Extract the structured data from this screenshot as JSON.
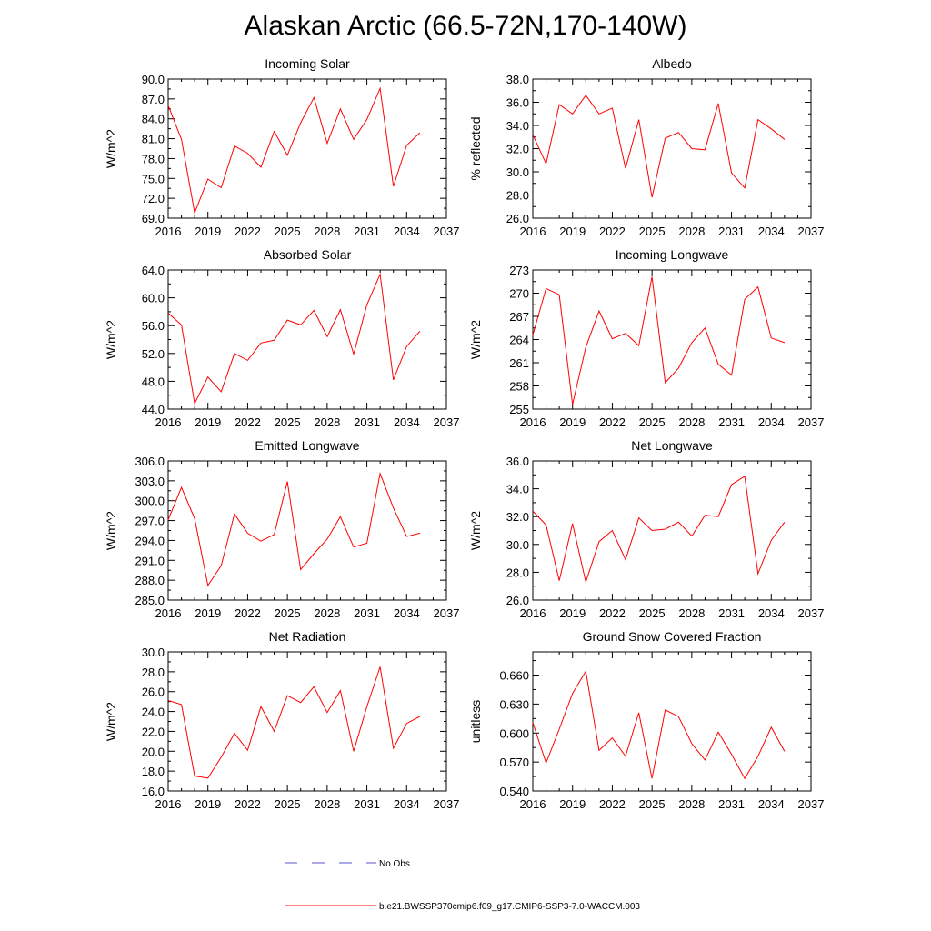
{
  "title": "Alaskan Arctic (66.5-72N,170-140W)",
  "legend": {
    "obs_label": "No Obs",
    "model_label": "b.e21.BWSSP370cmip6.f09_g17.CMIP6-SSP3-7.0-WACCM.003",
    "obs_color": "#5555cc",
    "model_color": "#ff0000"
  },
  "chart_data": [
    {
      "type": "line",
      "title": "Incoming Solar",
      "ylabel": "W/m^2",
      "xlabel": "",
      "xlim": [
        2016,
        2037
      ],
      "xticks": [
        "2016",
        "2019",
        "2022",
        "2025",
        "2028",
        "2031",
        "2034",
        "2037"
      ],
      "ylim": [
        69.0,
        90.0
      ],
      "yticks": [
        "69.0",
        "72.0",
        "75.0",
        "78.0",
        "81.0",
        "84.0",
        "87.0",
        "90.0"
      ],
      "x": [
        2016,
        2017,
        2018,
        2019,
        2020,
        2021,
        2022,
        2023,
        2024,
        2025,
        2026,
        2027,
        2028,
        2029,
        2030,
        2031,
        2032,
        2033,
        2034,
        2035
      ],
      "series": [
        {
          "name": "b.e21.BWSSP370cmip6.f09_g17.CMIP6-SSP3-7.0-WACCM.003",
          "values": [
            86.0,
            80.9,
            69.8,
            74.9,
            73.6,
            79.9,
            78.8,
            76.7,
            82.1,
            78.5,
            83.4,
            87.2,
            80.3,
            85.5,
            80.9,
            83.9,
            88.6,
            73.8,
            80.0,
            81.9
          ]
        }
      ]
    },
    {
      "type": "line",
      "title": "Albedo",
      "ylabel": "% reflected",
      "xlabel": "",
      "xlim": [
        2016,
        2037
      ],
      "xticks": [
        "2016",
        "2019",
        "2022",
        "2025",
        "2028",
        "2031",
        "2034",
        "2037"
      ],
      "ylim": [
        26.0,
        38.0
      ],
      "yticks": [
        "26.0",
        "28.0",
        "30.0",
        "32.0",
        "34.0",
        "36.0",
        "38.0"
      ],
      "x": [
        2016,
        2017,
        2018,
        2019,
        2020,
        2021,
        2022,
        2023,
        2024,
        2025,
        2026,
        2027,
        2028,
        2029,
        2030,
        2031,
        2032,
        2033,
        2034,
        2035
      ],
      "series": [
        {
          "name": "b.e21.BWSSP370cmip6.f09_g17.CMIP6-SSP3-7.0-WACCM.003",
          "values": [
            33.2,
            30.7,
            35.8,
            35.0,
            36.6,
            35.0,
            35.5,
            30.3,
            34.5,
            27.8,
            32.9,
            33.4,
            32.0,
            31.9,
            35.9,
            29.9,
            28.6,
            34.5,
            33.7,
            32.8
          ]
        }
      ]
    },
    {
      "type": "line",
      "title": "Absorbed Solar",
      "ylabel": "W/m^2",
      "xlabel": "",
      "xlim": [
        2016,
        2037
      ],
      "xticks": [
        "2016",
        "2019",
        "2022",
        "2025",
        "2028",
        "2031",
        "2034",
        "2037"
      ],
      "ylim": [
        44.0,
        64.0
      ],
      "yticks": [
        "44.0",
        "48.0",
        "52.0",
        "56.0",
        "60.0",
        "64.0"
      ],
      "x": [
        2016,
        2017,
        2018,
        2019,
        2020,
        2021,
        2022,
        2023,
        2024,
        2025,
        2026,
        2027,
        2028,
        2029,
        2030,
        2031,
        2032,
        2033,
        2034,
        2035
      ],
      "series": [
        {
          "name": "b.e21.BWSSP370cmip6.f09_g17.CMIP6-SSP3-7.0-WACCM.003",
          "values": [
            57.8,
            56.1,
            44.8,
            48.6,
            46.5,
            52.0,
            51.0,
            53.5,
            53.9,
            56.8,
            56.1,
            58.2,
            54.4,
            58.3,
            51.9,
            59.0,
            63.4,
            48.2,
            53.0,
            55.2
          ]
        }
      ]
    },
    {
      "type": "line",
      "title": "Incoming Longwave",
      "ylabel": "W/m^2",
      "xlabel": "",
      "xlim": [
        2016,
        2037
      ],
      "xticks": [
        "2016",
        "2019",
        "2022",
        "2025",
        "2028",
        "2031",
        "2034",
        "2037"
      ],
      "ylim": [
        255,
        273
      ],
      "yticks": [
        "255",
        "258",
        "261",
        "264",
        "267",
        "270",
        "273"
      ],
      "x": [
        2016,
        2017,
        2018,
        2019,
        2020,
        2021,
        2022,
        2023,
        2024,
        2025,
        2026,
        2027,
        2028,
        2029,
        2030,
        2031,
        2032,
        2033,
        2034,
        2035
      ],
      "series": [
        {
          "name": "b.e21.BWSSP370cmip6.f09_g17.CMIP6-SSP3-7.0-WACCM.003",
          "values": [
            264.6,
            270.6,
            269.8,
            255.6,
            263.0,
            267.7,
            264.1,
            264.8,
            263.2,
            272.1,
            258.4,
            260.3,
            263.6,
            265.5,
            260.8,
            259.4,
            269.2,
            270.8,
            264.2,
            263.6
          ]
        }
      ]
    },
    {
      "type": "line",
      "title": "Emitted Longwave",
      "ylabel": "W/m^2",
      "xlabel": "",
      "xlim": [
        2016,
        2037
      ],
      "xticks": [
        "2016",
        "2019",
        "2022",
        "2025",
        "2028",
        "2031",
        "2034",
        "2037"
      ],
      "ylim": [
        285.0,
        306.0
      ],
      "yticks": [
        "285.0",
        "288.0",
        "291.0",
        "294.0",
        "297.0",
        "300.0",
        "303.0",
        "306.0"
      ],
      "x": [
        2016,
        2017,
        2018,
        2019,
        2020,
        2021,
        2022,
        2023,
        2024,
        2025,
        2026,
        2027,
        2028,
        2029,
        2030,
        2031,
        2032,
        2033,
        2034,
        2035
      ],
      "series": [
        {
          "name": "b.e21.BWSSP370cmip6.f09_g17.CMIP6-SSP3-7.0-WACCM.003",
          "values": [
            297.1,
            302.0,
            297.3,
            287.2,
            290.2,
            298.0,
            295.1,
            293.9,
            294.9,
            302.9,
            289.6,
            292.0,
            294.2,
            297.6,
            293.0,
            293.6,
            304.1,
            298.9,
            294.6,
            295.1
          ]
        }
      ]
    },
    {
      "type": "line",
      "title": "Net Longwave",
      "ylabel": "W/m^2",
      "xlabel": "",
      "xlim": [
        2016,
        2037
      ],
      "xticks": [
        "2016",
        "2019",
        "2022",
        "2025",
        "2028",
        "2031",
        "2034",
        "2037"
      ],
      "ylim": [
        26.0,
        36.0
      ],
      "yticks": [
        "26.0",
        "28.0",
        "30.0",
        "32.0",
        "34.0",
        "36.0"
      ],
      "x": [
        2016,
        2017,
        2018,
        2019,
        2020,
        2021,
        2022,
        2023,
        2024,
        2025,
        2026,
        2027,
        2028,
        2029,
        2030,
        2031,
        2032,
        2033,
        2034,
        2035
      ],
      "series": [
        {
          "name": "b.e21.BWSSP370cmip6.f09_g17.CMIP6-SSP3-7.0-WACCM.003",
          "values": [
            32.4,
            31.4,
            27.4,
            31.5,
            27.3,
            30.2,
            31.0,
            28.9,
            31.9,
            31.0,
            31.1,
            31.6,
            30.6,
            32.1,
            32.0,
            34.3,
            34.9,
            27.9,
            30.3,
            31.6
          ]
        }
      ]
    },
    {
      "type": "line",
      "title": "Net Radiation",
      "ylabel": "W/m^2",
      "xlabel": "",
      "xlim": [
        2016,
        2037
      ],
      "xticks": [
        "2016",
        "2019",
        "2022",
        "2025",
        "2028",
        "2031",
        "2034",
        "2037"
      ],
      "ylim": [
        16.0,
        30.0
      ],
      "yticks": [
        "16.0",
        "18.0",
        "20.0",
        "22.0",
        "24.0",
        "26.0",
        "28.0",
        "30.0"
      ],
      "x": [
        2016,
        2017,
        2018,
        2019,
        2020,
        2021,
        2022,
        2023,
        2024,
        2025,
        2026,
        2027,
        2028,
        2029,
        2030,
        2031,
        2032,
        2033,
        2034,
        2035
      ],
      "series": [
        {
          "name": "b.e21.BWSSP370cmip6.f09_g17.CMIP6-SSP3-7.0-WACCM.003",
          "values": [
            25.1,
            24.7,
            17.5,
            17.3,
            19.4,
            21.8,
            20.1,
            24.5,
            22.0,
            25.6,
            24.9,
            26.5,
            23.9,
            26.1,
            20.0,
            24.5,
            28.5,
            20.3,
            22.8,
            23.5
          ]
        }
      ]
    },
    {
      "type": "line",
      "title": "Ground Snow Covered Fraction",
      "ylabel": "unitless",
      "xlabel": "",
      "xlim": [
        2016,
        2037
      ],
      "xticks": [
        "2016",
        "2019",
        "2022",
        "2025",
        "2028",
        "2031",
        "2034",
        "2037"
      ],
      "ylim": [
        0.54,
        0.684
      ],
      "yticks": [
        "0.540",
        "0.570",
        "0.600",
        "0.630",
        "0.660"
      ],
      "x": [
        2016,
        2017,
        2018,
        2019,
        2020,
        2021,
        2022,
        2023,
        2024,
        2025,
        2026,
        2027,
        2028,
        2029,
        2030,
        2031,
        2032,
        2033,
        2034,
        2035
      ],
      "series": [
        {
          "name": "b.e21.BWSSP370cmip6.f09_g17.CMIP6-SSP3-7.0-WACCM.003",
          "values": [
            0.611,
            0.569,
            0.604,
            0.641,
            0.664,
            0.582,
            0.595,
            0.576,
            0.621,
            0.553,
            0.624,
            0.617,
            0.589,
            0.572,
            0.601,
            0.578,
            0.553,
            0.576,
            0.606,
            0.581
          ]
        }
      ]
    }
  ]
}
